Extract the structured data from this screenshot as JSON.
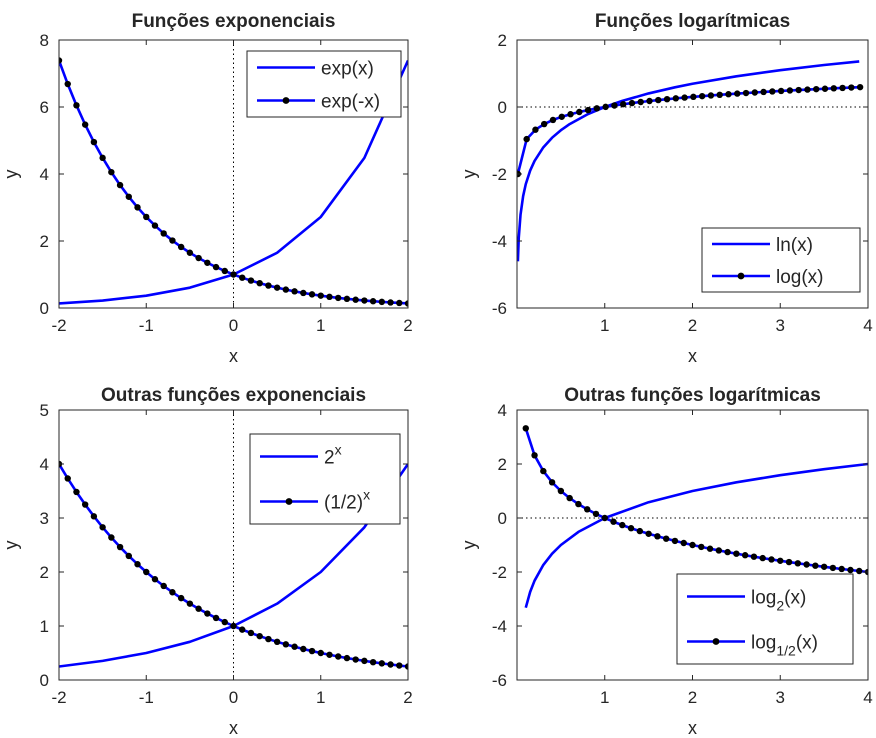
{
  "chart_data": [
    {
      "type": "line",
      "title": "Funções exponenciais",
      "xlabel": "x",
      "ylabel": "y",
      "xlim": [
        -2,
        2
      ],
      "ylim": [
        0,
        8
      ],
      "xticks": [
        -2,
        -1,
        0,
        1,
        2
      ],
      "xtick_labels": [
        "-2",
        "-1",
        "0",
        "1",
        "2"
      ],
      "yticks": [
        0,
        2,
        4,
        6,
        8
      ],
      "ytick_labels": [
        "0",
        "2",
        "4",
        "6",
        "8"
      ],
      "grid": false,
      "reference_lines": {
        "x0": true,
        "y0": true
      },
      "legend_position": "top-right",
      "series": [
        {
          "name": "exp(x)",
          "style": "line",
          "color": "#0000ff",
          "x": [
            -2,
            -1.5,
            -1,
            -0.5,
            0,
            0.5,
            1,
            1.5,
            2
          ],
          "y": [
            0.135,
            0.223,
            0.368,
            0.607,
            1,
            1.649,
            2.718,
            4.482,
            7.389
          ]
        },
        {
          "name": "exp(-x)",
          "style": "line-marker",
          "color": "#0000ff",
          "marker_color": "#000000",
          "x": [
            -2,
            -1.9,
            -1.8,
            -1.7,
            -1.6,
            -1.5,
            -1.4,
            -1.3,
            -1.2,
            -1.1,
            -1,
            -0.9,
            -0.8,
            -0.7,
            -0.6,
            -0.5,
            -0.4,
            -0.3,
            -0.2,
            -0.1,
            0,
            0.1,
            0.2,
            0.3,
            0.4,
            0.5,
            0.6,
            0.7,
            0.8,
            0.9,
            1,
            1.1,
            1.2,
            1.3,
            1.4,
            1.5,
            1.6,
            1.7,
            1.8,
            1.9,
            2
          ],
          "y": [
            7.389,
            6.686,
            6.05,
            5.474,
            4.953,
            4.482,
            4.055,
            3.669,
            3.32,
            3.004,
            2.718,
            2.46,
            2.226,
            2.014,
            1.822,
            1.649,
            1.492,
            1.35,
            1.221,
            1.105,
            1,
            0.905,
            0.819,
            0.741,
            0.67,
            0.607,
            0.549,
            0.497,
            0.449,
            0.407,
            0.368,
            0.333,
            0.301,
            0.273,
            0.247,
            0.223,
            0.202,
            0.183,
            0.165,
            0.15,
            0.135
          ]
        }
      ]
    },
    {
      "type": "line",
      "title": "Funções logarítmicas",
      "xlabel": "x",
      "ylabel": "y",
      "xlim": [
        0,
        4
      ],
      "ylim": [
        -6,
        2
      ],
      "xticks": [
        1,
        2,
        3,
        4
      ],
      "xtick_labels": [
        "1",
        "2",
        "3",
        "4"
      ],
      "yticks": [
        -6,
        -4,
        -2,
        0,
        2
      ],
      "ytick_labels": [
        "-6",
        "-4",
        "-2",
        "0",
        "2"
      ],
      "grid": false,
      "reference_lines": {
        "x0": false,
        "y0": true
      },
      "legend_position": "bottom-right",
      "series": [
        {
          "name": "ln(x)",
          "style": "line",
          "color": "#0000ff",
          "x": [
            0.01,
            0.02,
            0.04,
            0.07,
            0.1,
            0.15,
            0.2,
            0.3,
            0.4,
            0.5,
            0.6,
            0.8,
            1,
            1.2,
            1.5,
            1.8,
            2,
            2.5,
            3,
            3.5,
            3.9
          ],
          "y": [
            -4.605,
            -3.912,
            -3.219,
            -2.659,
            -2.303,
            -1.897,
            -1.609,
            -1.204,
            -0.916,
            -0.693,
            -0.511,
            -0.223,
            0,
            0.182,
            0.405,
            0.588,
            0.693,
            0.916,
            1.099,
            1.253,
            1.361
          ]
        },
        {
          "name": "log(x)",
          "style": "line-marker",
          "color": "#0000ff",
          "marker_color": "#000000",
          "x": [
            0.01,
            0.11,
            0.21,
            0.31,
            0.41,
            0.51,
            0.61,
            0.71,
            0.81,
            0.91,
            1.01,
            1.11,
            1.21,
            1.31,
            1.41,
            1.51,
            1.61,
            1.71,
            1.81,
            1.91,
            2.01,
            2.11,
            2.21,
            2.31,
            2.41,
            2.51,
            2.61,
            2.71,
            2.81,
            2.91,
            3.01,
            3.11,
            3.21,
            3.31,
            3.41,
            3.51,
            3.61,
            3.71,
            3.81,
            3.91
          ],
          "y": [
            -2,
            -0.959,
            -0.678,
            -0.509,
            -0.387,
            -0.292,
            -0.215,
            -0.149,
            -0.092,
            -0.041,
            0.004,
            0.045,
            0.083,
            0.117,
            0.149,
            0.179,
            0.207,
            0.233,
            0.258,
            0.281,
            0.303,
            0.324,
            0.344,
            0.364,
            0.382,
            0.4,
            0.417,
            0.433,
            0.449,
            0.464,
            0.479,
            0.493,
            0.507,
            0.52,
            0.533,
            0.545,
            0.558,
            0.569,
            0.581,
            0.592
          ]
        }
      ]
    },
    {
      "type": "line",
      "title": "Outras funções exponenciais",
      "xlabel": "x",
      "ylabel": "y",
      "xlim": [
        -2,
        2
      ],
      "ylim": [
        0,
        5
      ],
      "xticks": [
        -2,
        -1,
        0,
        1,
        2
      ],
      "xtick_labels": [
        "-2",
        "-1",
        "0",
        "1",
        "2"
      ],
      "yticks": [
        0,
        1,
        2,
        3,
        4,
        5
      ],
      "ytick_labels": [
        "0",
        "1",
        "2",
        "3",
        "4",
        "5"
      ],
      "grid": false,
      "reference_lines": {
        "x0": true,
        "y0": true
      },
      "legend_position": "top-right",
      "series": [
        {
          "name": "2^x",
          "style": "line",
          "color": "#0000ff",
          "x": [
            -2,
            -1.5,
            -1,
            -0.5,
            0,
            0.5,
            1,
            1.5,
            2
          ],
          "y": [
            0.25,
            0.354,
            0.5,
            0.707,
            1,
            1.414,
            2,
            2.828,
            4
          ]
        },
        {
          "name": "(1/2)^x",
          "style": "line-marker",
          "color": "#0000ff",
          "marker_color": "#000000",
          "x": [
            -2,
            -1.9,
            -1.8,
            -1.7,
            -1.6,
            -1.5,
            -1.4,
            -1.3,
            -1.2,
            -1.1,
            -1,
            -0.9,
            -0.8,
            -0.7,
            -0.6,
            -0.5,
            -0.4,
            -0.3,
            -0.2,
            -0.1,
            0,
            0.1,
            0.2,
            0.3,
            0.4,
            0.5,
            0.6,
            0.7,
            0.8,
            0.9,
            1,
            1.1,
            1.2,
            1.3,
            1.4,
            1.5,
            1.6,
            1.7,
            1.8,
            1.9,
            2
          ],
          "y": [
            4,
            3.732,
            3.482,
            3.249,
            3.031,
            2.828,
            2.639,
            2.462,
            2.297,
            2.144,
            2,
            1.866,
            1.741,
            1.625,
            1.516,
            1.414,
            1.32,
            1.231,
            1.149,
            1.072,
            1,
            0.933,
            0.871,
            0.812,
            0.758,
            0.707,
            0.66,
            0.616,
            0.574,
            0.536,
            0.5,
            0.467,
            0.435,
            0.406,
            0.379,
            0.354,
            0.33,
            0.308,
            0.287,
            0.268,
            0.25
          ]
        }
      ]
    },
    {
      "type": "line",
      "title": "Outras funções logarítmicas",
      "xlabel": "x",
      "ylabel": "y",
      "xlim": [
        0,
        4
      ],
      "ylim": [
        -6,
        4
      ],
      "xticks": [
        1,
        2,
        3,
        4
      ],
      "xtick_labels": [
        "1",
        "2",
        "3",
        "4"
      ],
      "yticks": [
        -6,
        -4,
        -2,
        0,
        2,
        4
      ],
      "ytick_labels": [
        "-6",
        "-4",
        "-2",
        "0",
        "2",
        "4"
      ],
      "grid": false,
      "reference_lines": {
        "x0": false,
        "y0": true
      },
      "legend_position": "bottom-right",
      "series": [
        {
          "name": "log_2(x)",
          "style": "line",
          "color": "#0000ff",
          "x": [
            0.1,
            0.15,
            0.2,
            0.3,
            0.4,
            0.5,
            0.7,
            1,
            1.5,
            2,
            2.5,
            3,
            3.5,
            4
          ],
          "y": [
            -3.322,
            -2.737,
            -2.322,
            -1.737,
            -1.322,
            -1,
            -0.515,
            0,
            0.585,
            1,
            1.322,
            1.585,
            1.807,
            2
          ]
        },
        {
          "name": "log_1/2(x)",
          "style": "line-marker",
          "color": "#0000ff",
          "marker_color": "#000000",
          "x": [
            0.1,
            0.2,
            0.3,
            0.4,
            0.5,
            0.6,
            0.7,
            0.8,
            0.9,
            1,
            1.1,
            1.2,
            1.3,
            1.4,
            1.5,
            1.6,
            1.7,
            1.8,
            1.9,
            2,
            2.1,
            2.2,
            2.3,
            2.4,
            2.5,
            2.6,
            2.7,
            2.8,
            2.9,
            3,
            3.1,
            3.2,
            3.3,
            3.4,
            3.5,
            3.6,
            3.7,
            3.8,
            3.9,
            4
          ],
          "y": [
            3.322,
            2.322,
            1.737,
            1.322,
            1,
            0.737,
            0.515,
            0.322,
            0.152,
            0,
            -0.138,
            -0.263,
            -0.379,
            -0.485,
            -0.585,
            -0.678,
            -0.766,
            -0.848,
            -0.926,
            -1,
            -1.07,
            -1.138,
            -1.202,
            -1.263,
            -1.322,
            -1.379,
            -1.433,
            -1.485,
            -1.536,
            -1.585,
            -1.632,
            -1.678,
            -1.722,
            -1.766,
            -1.807,
            -1.848,
            -1.888,
            -1.926,
            -1.963,
            -2
          ]
        }
      ]
    }
  ]
}
